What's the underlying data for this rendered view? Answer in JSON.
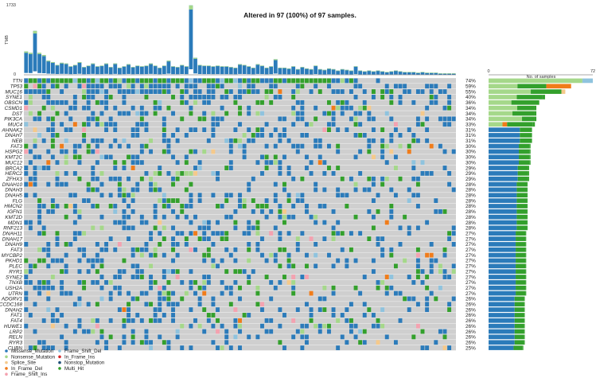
{
  "title": "Altered in 97 (100%) of 97 samples.",
  "tmb_axis": {
    "label": "TMB",
    "max": 1733,
    "ticks": [
      "0",
      "1733"
    ]
  },
  "side_axis": {
    "label": "No. of samples",
    "min": 0,
    "max": 72,
    "ticks": [
      "0",
      "72"
    ]
  },
  "colors": {
    "Missense_Mutation": "#2b7bba",
    "Nonsense_Mutation": "#a5d88a",
    "Splice_Site": "#f5c98b",
    "In_Frame_Del": "#f07c1a",
    "Frame_Shift_Ins": "#f4a2b0",
    "Frame_Shift_Del": "#8fc3de",
    "In_Frame_Ins": "#d62728",
    "Nonstop_Mutation": "#1f4e79",
    "Multi_Hit": "#33a02c",
    "background": "#cfcfcf"
  },
  "legend": [
    {
      "key": "Missense_Mutation",
      "label": "Missense_Mutation"
    },
    {
      "key": "Nonsense_Mutation",
      "label": "Nonsense_Mutation"
    },
    {
      "key": "Splice_Site",
      "label": "Splice_Site"
    },
    {
      "key": "In_Frame_Del",
      "label": "In_Frame_Del"
    },
    {
      "key": "Frame_Shift_Ins",
      "label": "Frame_Shift_Ins"
    },
    {
      "key": "Frame_Shift_Del",
      "label": "Frame_Shift_Del"
    },
    {
      "key": "In_Frame_Ins",
      "label": "In_Frame_Ins"
    },
    {
      "key": "Nonstop_Mutation",
      "label": "Nonstop_Mutation"
    },
    {
      "key": "Multi_Hit",
      "label": "Multi_Hit"
    }
  ],
  "chart_data": {
    "type": "heatmap",
    "samples": 97,
    "genes": [
      "TTN",
      "TP53",
      "MUC16",
      "SYNE1",
      "OBSCN",
      "CSMD1",
      "DST",
      "PIK3CA",
      "MUC4",
      "AHNAK2",
      "DNAH7",
      "NEB",
      "FAT3",
      "HSPG2",
      "KMT2C",
      "MUC12",
      "BRCA2",
      "HERC2",
      "ZFHX3",
      "DNAH10",
      "DNAH3",
      "DNAH5",
      "FLG",
      "HMCN2",
      "IGFN1",
      "KMT2D",
      "MDN1",
      "RNF213",
      "DNAH11",
      "DNAH17",
      "DNAH9",
      "FAT3",
      "MYCBP2",
      "PKHD1",
      "PLEC",
      "RYR1",
      "SYNE2",
      "TNXB",
      "USH2A",
      "UTRN",
      "ADGRV1",
      "CCDC168",
      "DNAH2",
      "FAT1",
      "FAT4",
      "HUWE1",
      "LRP2",
      "RELN",
      "RYR3",
      "CUBN"
    ],
    "percentages": [
      "74%",
      "59%",
      "55%",
      "40%",
      "36%",
      "34%",
      "34%",
      "34%",
      "33%",
      "31%",
      "31%",
      "31%",
      "30%",
      "30%",
      "30%",
      "30%",
      "29%",
      "29%",
      "29%",
      "28%",
      "28%",
      "28%",
      "28%",
      "28%",
      "28%",
      "28%",
      "28%",
      "28%",
      "27%",
      "27%",
      "27%",
      "27%",
      "27%",
      "27%",
      "27%",
      "27%",
      "27%",
      "27%",
      "27%",
      "27%",
      "26%",
      "26%",
      "26%",
      "26%",
      "26%",
      "26%",
      "26%",
      "26%",
      "26%",
      "25%"
    ],
    "side_counts": [
      72,
      57,
      53,
      39,
      35,
      33,
      33,
      33,
      32,
      30,
      30,
      30,
      29,
      29,
      29,
      29,
      28,
      28,
      28,
      27,
      27,
      27,
      27,
      27,
      27,
      27,
      27,
      27,
      26,
      26,
      26,
      26,
      26,
      26,
      26,
      26,
      26,
      26,
      26,
      26,
      25,
      25,
      25,
      25,
      25,
      25,
      25,
      25,
      25,
      24
    ],
    "side_colored": [
      [
        [
          1,
          0.9,
          0.8,
          0.8
        ],
        [
          5,
          0.6
        ],
        [
          2,
          0.6
        ],
        [
          8,
          0.4
        ]
      ],
      [
        [
          1,
          0.35
        ],
        [
          8,
          0.35
        ],
        [
          3,
          0.4
        ]
      ],
      [
        [
          1,
          0.55
        ],
        [
          8,
          0.4
        ],
        [
          2,
          0.05
        ]
      ],
      [
        [
          1,
          0.5
        ],
        [
          8,
          0.45
        ]
      ],
      [
        [
          1,
          0.45
        ],
        [
          8,
          0.5
        ]
      ],
      [
        [
          1,
          0.6
        ],
        [
          8,
          0.35
        ]
      ],
      [
        [
          1,
          0.5
        ],
        [
          8,
          0.45
        ]
      ],
      [
        [
          1,
          0.7
        ],
        [
          8,
          0.25
        ]
      ],
      [
        [
          1,
          0.3
        ],
        [
          3,
          0.1
        ],
        [
          8,
          0.55
        ]
      ]
    ],
    "tmb": [
      0.33,
      0.31,
      0.62,
      0.31,
      0.28,
      0.2,
      0.18,
      0.14,
      0.17,
      0.16,
      0.12,
      0.14,
      0.18,
      0.11,
      0.13,
      0.16,
      0.12,
      0.13,
      0.16,
      0.11,
      0.16,
      0.1,
      0.12,
      0.15,
      0.11,
      0.13,
      0.12,
      0.13,
      0.16,
      0.13,
      0.1,
      0.13,
      0.2,
      0.12,
      0.11,
      0.14,
      0.12,
      0.98,
      0.24,
      0.14,
      0.13,
      0.13,
      0.12,
      0.13,
      0.12,
      0.12,
      0.11,
      0.1,
      0.15,
      0.14,
      0.12,
      0.1,
      0.15,
      0.13,
      0.1,
      0.12,
      0.22,
      0.1,
      0.1,
      0.09,
      0.12,
      0.08,
      0.11,
      0.09,
      0.08,
      0.13,
      0.08,
      0.07,
      0.09,
      0.08,
      0.06,
      0.08,
      0.07,
      0.06,
      0.12,
      0.06,
      0.05,
      0.06,
      0.05,
      0.06,
      0.05,
      0.04,
      0.05,
      0.06,
      0.05,
      0.04,
      0.04,
      0.04,
      0.03,
      0.04,
      0.03,
      0.03,
      0.03,
      0.02,
      0.02,
      0.02,
      0.02
    ],
    "notes": "Oncoplot: rows=genes, columns=samples; cell color=variant classification."
  }
}
